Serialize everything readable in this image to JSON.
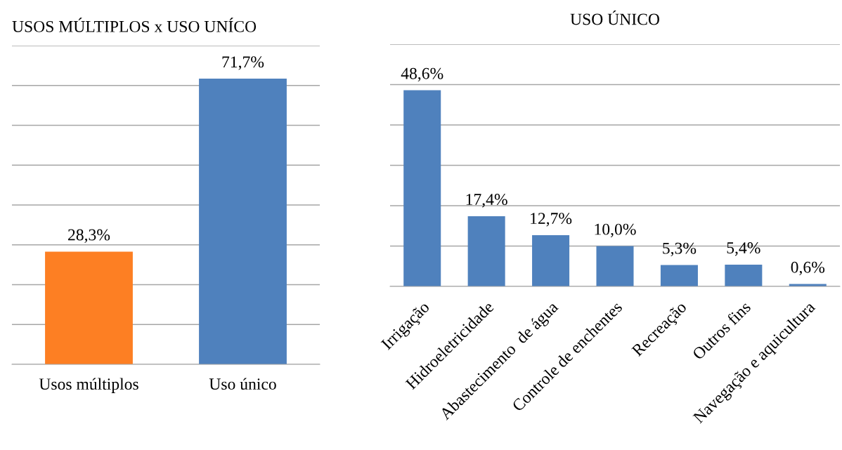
{
  "chart_data": [
    {
      "type": "bar",
      "title": "USOS MÚLTIPLOS x USO UNÍCO",
      "categories": [
        "Usos múltiplos",
        "Uso único"
      ],
      "values": [
        28.3,
        71.7
      ],
      "colors": [
        "#fd7f23",
        "#4f81bd"
      ],
      "value_labels": [
        "28,3%",
        "71,7%"
      ],
      "ylim": [
        0,
        80
      ],
      "yticks": [
        {
          "value": 0,
          "label": null
        },
        {
          "value": 10,
          "label": null
        },
        {
          "value": 20,
          "label": null
        },
        {
          "value": 30,
          "label": null
        },
        {
          "value": 40,
          "label": null
        },
        {
          "value": 50,
          "label": null
        },
        {
          "value": 60,
          "label": null
        },
        {
          "value": 70,
          "label": null
        },
        {
          "value": 80,
          "label": null
        }
      ],
      "grid": "y",
      "tick_labels": "x"
    },
    {
      "type": "bar",
      "title": "USO ÚNICO",
      "categories": [
        "Irrigação",
        "Hidroeletricidade",
        "Abastecimento  de água",
        "Controle de enchentes",
        "Recreação",
        "Outros fins",
        "Navegação e aquicultura"
      ],
      "values": [
        48.6,
        17.4,
        12.7,
        10.0,
        5.3,
        5.4,
        0.6
      ],
      "color": "#4f81bd",
      "value_labels": [
        "48,6%",
        "17,4%",
        "12,7%",
        "10,0%",
        "5,3%",
        "5,4%",
        "0,6%"
      ],
      "ylim": [
        0,
        60
      ],
      "yticks": [
        {
          "value": 0,
          "label": null
        },
        {
          "value": 10,
          "label": null
        },
        {
          "value": 20,
          "label": null
        },
        {
          "value": 30,
          "label": null
        },
        {
          "value": 40,
          "label": null
        },
        {
          "value": 50,
          "label": null
        },
        {
          "value": 60,
          "label": null
        }
      ],
      "grid": "y",
      "tick_labels": "x"
    }
  ]
}
